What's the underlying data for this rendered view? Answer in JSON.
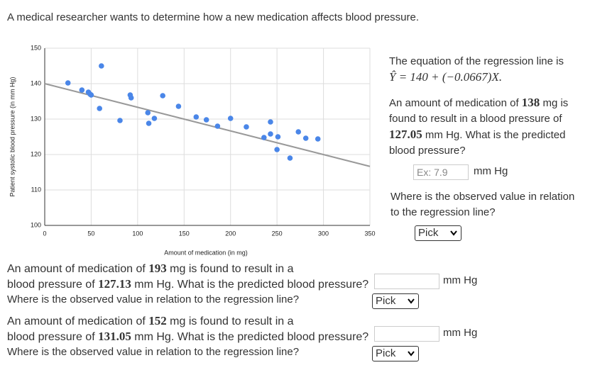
{
  "intro": "A medical researcher wants to determine how a new medication affects blood pressure.",
  "chart_data": {
    "type": "scatter",
    "x_label": "Amount of medication (in mg)",
    "y_label": "Patient systolic blood pressure (in mm Hg)",
    "color": "#4a86e8",
    "x": [
      25,
      40,
      47,
      49,
      50,
      61,
      59,
      81,
      92,
      93,
      111,
      112,
      118,
      127,
      144,
      163,
      174,
      186,
      200,
      217,
      236,
      243,
      243,
      251,
      250,
      264,
      273,
      281,
      294
    ],
    "values": [
      140.2,
      138.2,
      137.6,
      137.0,
      136.8,
      145.0,
      133.0,
      129.6,
      136.8,
      136.0,
      131.8,
      128.8,
      130.2,
      136.6,
      133.6,
      130.6,
      129.8,
      128.0,
      130.2,
      127.8,
      124.8,
      129.2,
      125.8,
      125.0,
      121.4,
      119.0,
      126.4,
      124.6,
      124.4
    ],
    "regression_line": {
      "intercept": 140,
      "slope": -0.0667,
      "color": "#999999"
    },
    "xlim": [
      0,
      350
    ],
    "xticks": [
      0,
      50,
      100,
      150,
      200,
      250,
      300,
      350
    ],
    "ylim": [
      100,
      150
    ],
    "yticks": [
      100,
      110,
      120,
      130,
      140,
      150
    ],
    "grid": true
  },
  "panel": {
    "equation_intro": "The equation of the regression line is",
    "equation": "Ŷ = 140 + (−0.0667)X.",
    "question": [
      "An amount of medication of ",
      "138",
      " mg is found to result in a blood pressure of ",
      "127.05",
      " mm Hg. What is the predicted blood pressure?"
    ],
    "placeholder": "Ex: 7.9",
    "unit": "mm Hg",
    "followup": "Where is the observed value in relation to the regression line?",
    "select": "Pick"
  },
  "questions": [
    {
      "lines": [
        [
          "An amount of medication of ",
          "193",
          " mg is found to result in a"
        ],
        [
          "blood pressure of ",
          "127.13",
          " mm Hg. What is the predicted blood pressure?"
        ]
      ],
      "unit": "mm Hg",
      "followup": "Where is the observed value in relation to the regression line?",
      "select": "Pick"
    },
    {
      "lines": [
        [
          "An amount of medication of ",
          "152",
          " mg is found to result in a"
        ],
        [
          "blood pressure of ",
          "131.05",
          " mm Hg. What is the predicted blood pressure?"
        ]
      ],
      "unit": "mm Hg",
      "followup": "Where is the observed value in relation to the regression line?",
      "select": "Pick"
    }
  ]
}
